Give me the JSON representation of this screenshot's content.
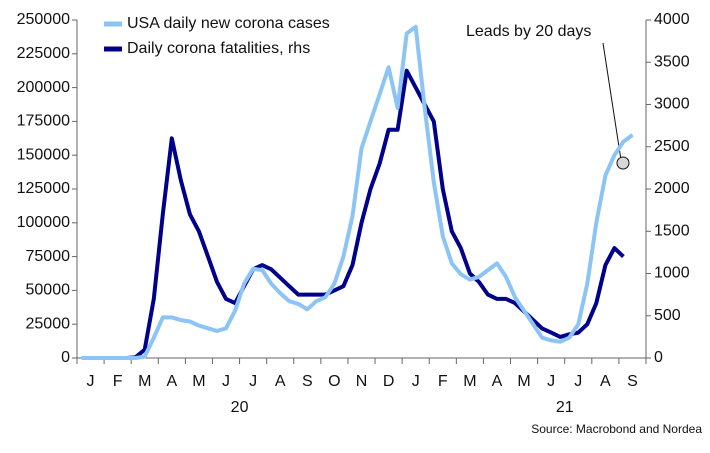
{
  "chart_data": {
    "type": "line",
    "categories": [
      null,
      "J",
      null,
      null,
      "F",
      null,
      null,
      "M",
      null,
      null,
      "A",
      null,
      null,
      "M",
      null,
      null,
      "J",
      null,
      null,
      "J",
      null,
      null,
      "A",
      null,
      null,
      "S",
      null,
      null,
      "O",
      null,
      null,
      "N",
      null,
      null,
      "D",
      null,
      null,
      "J",
      null,
      null,
      "F",
      null,
      null,
      "M",
      null,
      null,
      "A",
      null,
      null,
      "M",
      null,
      null,
      "J",
      null,
      null,
      "J",
      null,
      null,
      "A",
      null,
      null,
      "S",
      null
    ],
    "year_labels": [
      "20",
      "21"
    ],
    "series": [
      {
        "name": "USA daily new corona cases",
        "color": "#8cc4f5",
        "axis": "y",
        "values": [
          0,
          0,
          0,
          0,
          0,
          0,
          0,
          1000,
          15000,
          30000,
          30000,
          28000,
          27000,
          24000,
          22000,
          20000,
          22000,
          35000,
          55000,
          66000,
          65000,
          55000,
          48000,
          42000,
          40000,
          36000,
          42000,
          45000,
          55000,
          75000,
          105000,
          155000,
          175000,
          195000,
          215000,
          185000,
          240000,
          245000,
          185000,
          130000,
          90000,
          70000,
          62000,
          58000,
          60000,
          65000,
          70000,
          60000,
          45000,
          35000,
          25000,
          15000,
          13000,
          12000,
          15000,
          25000,
          55000,
          100000,
          135000,
          150000,
          160000,
          165000,
          null
        ]
      },
      {
        "name": "Daily corona fatalities, rhs",
        "color": "#00008b",
        "axis": "y2",
        "values": [
          0,
          0,
          0,
          0,
          0,
          0,
          10,
          100,
          700,
          1700,
          2600,
          2100,
          1700,
          1500,
          1200,
          900,
          700,
          650,
          850,
          1050,
          1100,
          1050,
          950,
          850,
          750,
          750,
          750,
          750,
          800,
          850,
          1100,
          1600,
          2000,
          2300,
          2700,
          2700,
          3400,
          3200,
          3000,
          2800,
          2000,
          1500,
          1300,
          1000,
          900,
          750,
          700,
          700,
          650,
          550,
          450,
          350,
          300,
          250,
          280,
          300,
          400,
          650,
          1100,
          1300,
          1200,
          null,
          null
        ]
      }
    ],
    "ylim": [
      0,
      250000
    ],
    "yticks": [
      0,
      25000,
      50000,
      75000,
      100000,
      125000,
      150000,
      175000,
      200000,
      225000,
      250000
    ],
    "y2lim": [
      0,
      4000
    ],
    "y2ticks": [
      0,
      500,
      1000,
      1500,
      2000,
      2500,
      3000,
      3500,
      4000
    ],
    "annotation": "Leads by 20 days",
    "source": "Source: Macrobond and Nordea"
  }
}
